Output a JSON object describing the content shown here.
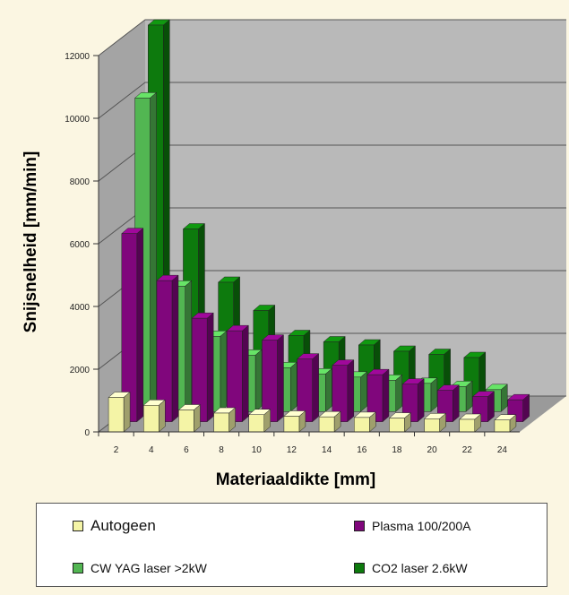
{
  "chart_data": {
    "type": "bar",
    "style": "3d-clustered",
    "categories": [
      "2",
      "4",
      "6",
      "8",
      "10",
      "12",
      "14",
      "16",
      "18",
      "20",
      "22",
      "24"
    ],
    "xlabel": "Materiaaldikte [mm]",
    "ylabel": "Snijsnelheid [mm/min]",
    "ylim": [
      0,
      12000
    ],
    "yticks": [
      "0",
      "2000",
      "4000",
      "6000",
      "8000",
      "10000",
      "12000"
    ],
    "grid": true,
    "legend_position": "bottom",
    "series": [
      {
        "name": "Autogeen",
        "color": "#f4f4a6",
        "values": [
          1100,
          850,
          700,
          600,
          550,
          500,
          480,
          460,
          440,
          420,
          400,
          380
        ]
      },
      {
        "name": "Plasma 100/200A",
        "color": "#80067c",
        "values": [
          6000,
          4500,
          3300,
          2900,
          2600,
          2000,
          1800,
          1500,
          1200,
          1000,
          800,
          700
        ]
      },
      {
        "name": "CW YAG laser >2kW",
        "color": "#52b652",
        "values": [
          10000,
          4000,
          2400,
          1800,
          1400,
          1200,
          1100,
          1000,
          900,
          800,
          700,
          0
        ]
      },
      {
        "name": "CO2 laser 2.6kW",
        "color": "#0d7a0d",
        "values": [
          12000,
          5500,
          3800,
          2900,
          2100,
          1900,
          1800,
          1600,
          1500,
          1400,
          0,
          0
        ]
      }
    ]
  },
  "legend": {
    "items": [
      "Autogeen",
      "Plasma 100/200A",
      "CW YAG laser >2kW",
      "CO2 laser 2.6kW"
    ]
  }
}
